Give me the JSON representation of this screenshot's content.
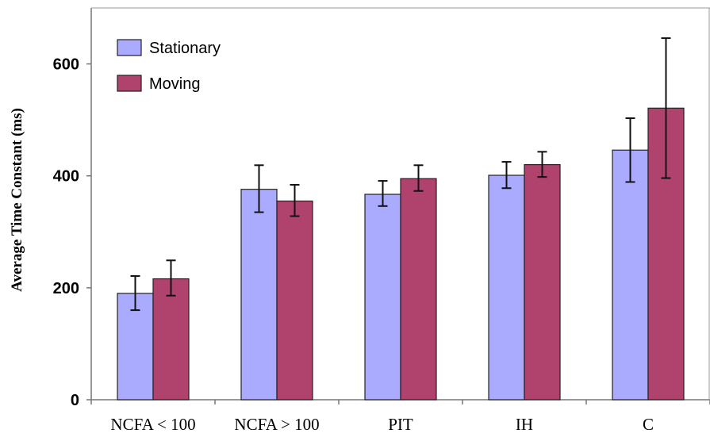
{
  "chart_data": {
    "type": "bar",
    "title": "",
    "xlabel": "",
    "ylabel": "Average Time Constant (ms)",
    "ylim": [
      0,
      700
    ],
    "yticks": [
      0,
      200,
      400,
      600
    ],
    "grid": false,
    "legend_position": "top-left",
    "categories": [
      "NCFA < 100",
      "NCFA > 100",
      "PIT",
      "IH",
      "C"
    ],
    "series": [
      {
        "name": "Stationary",
        "color": "#aaaaff",
        "values": [
          190,
          376,
          367,
          401,
          446
        ],
        "error": [
          [
            160,
            221
          ],
          [
            335,
            419
          ],
          [
            346,
            391
          ],
          [
            378,
            425
          ],
          [
            389,
            503
          ]
        ]
      },
      {
        "name": "Moving",
        "color": "#b0436e",
        "values": [
          216,
          355,
          395,
          420,
          521
        ],
        "error": [
          [
            186,
            249
          ],
          [
            328,
            384
          ],
          [
            373,
            419
          ],
          [
            398,
            443
          ],
          [
            396,
            646
          ]
        ]
      }
    ]
  }
}
